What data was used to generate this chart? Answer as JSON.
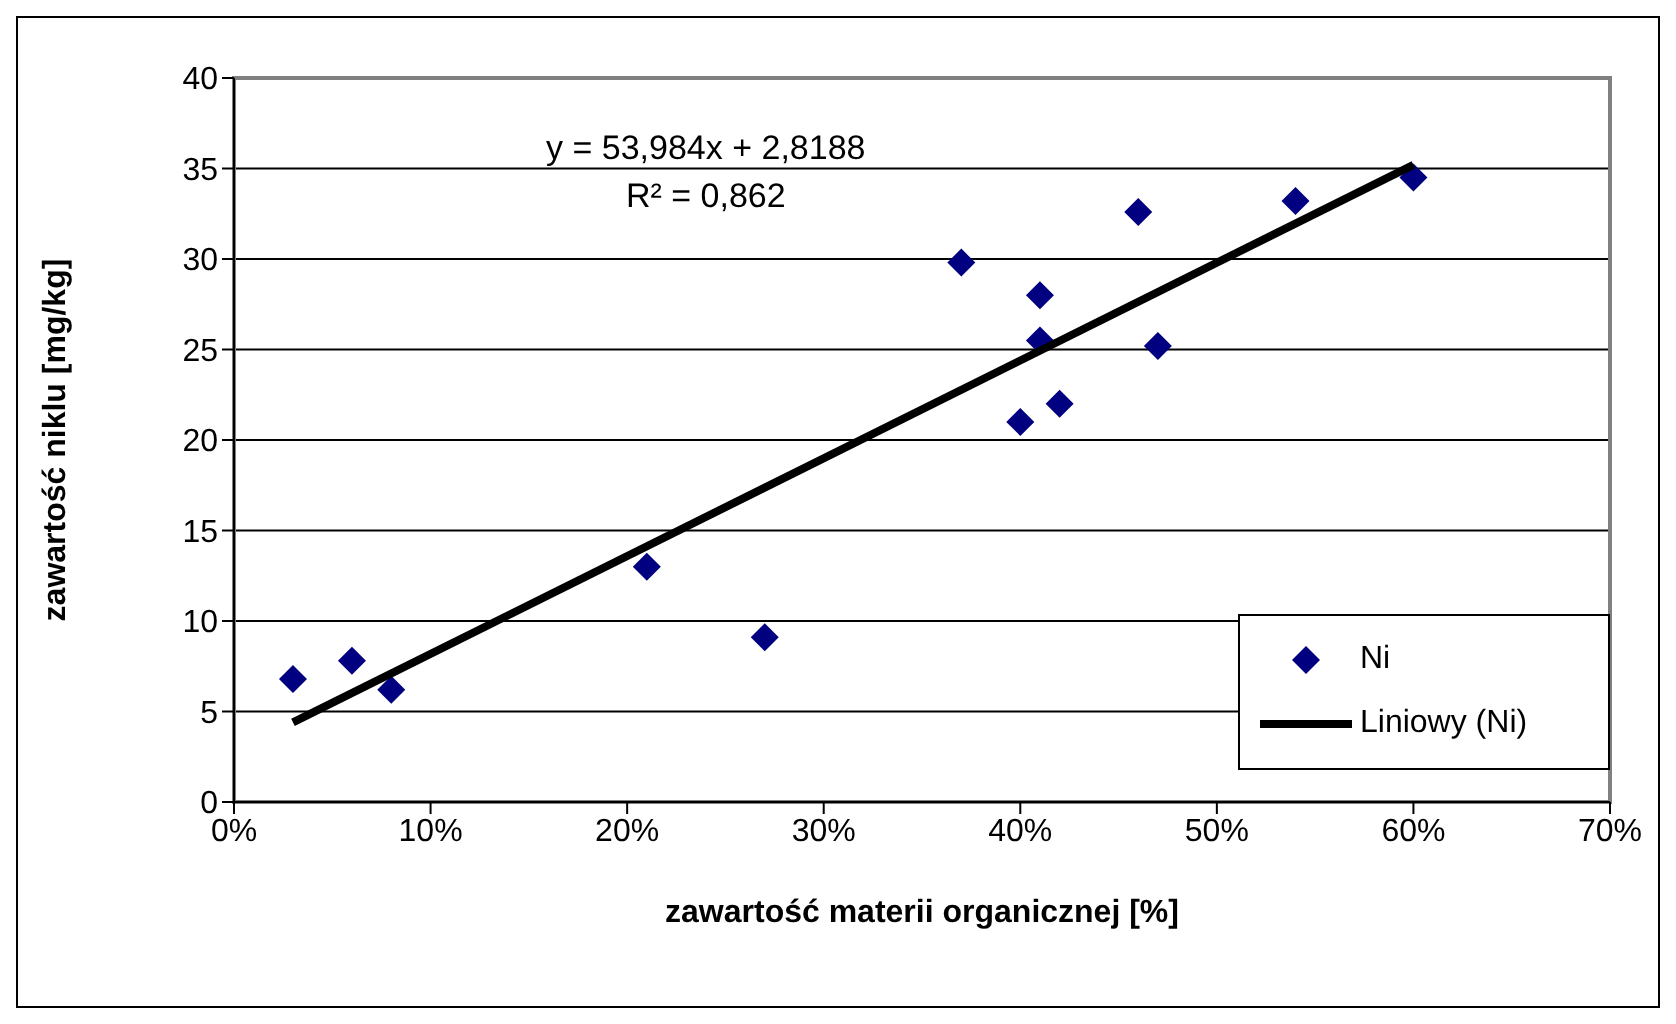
{
  "chart_data": {
    "type": "scatter",
    "xlabel": "zawartość materii organicznej [%]",
    "ylabel": "zawartość niklu [mg/kg]",
    "annotations": [
      "y = 53,984x + 2,8188",
      "R² = 0,862"
    ],
    "series": [
      {
        "name": "Ni",
        "type": "scatter",
        "color": "#000080",
        "marker": "diamond",
        "x": [
          3,
          6,
          8,
          21,
          27,
          37,
          40,
          41,
          41,
          42,
          46,
          47,
          54,
          60
        ],
        "values": [
          6.8,
          7.8,
          6.2,
          13,
          9.1,
          29.8,
          21,
          28,
          25.5,
          22,
          32.6,
          25.2,
          33.2,
          34.5
        ]
      },
      {
        "name": "Liniowy (Ni)",
        "type": "line",
        "color": "#000000",
        "line_style": "solid",
        "marker": "none",
        "x": [
          3,
          60
        ],
        "values": [
          4.4,
          35.2
        ]
      }
    ],
    "xlim": [
      0,
      70
    ],
    "xticks": [
      {
        "value": 0,
        "label": "0%"
      },
      {
        "value": 10,
        "label": "10%"
      },
      {
        "value": 20,
        "label": "20%"
      },
      {
        "value": 30,
        "label": "30%"
      },
      {
        "value": 40,
        "label": "40%"
      },
      {
        "value": 50,
        "label": "50%"
      },
      {
        "value": 60,
        "label": "60%"
      },
      {
        "value": 70,
        "label": "70%"
      }
    ],
    "ylim": [
      0,
      40
    ],
    "yticks": [
      0,
      5,
      10,
      15,
      20,
      25,
      30,
      35,
      40
    ],
    "grid": "y",
    "legend": "bottom right"
  }
}
